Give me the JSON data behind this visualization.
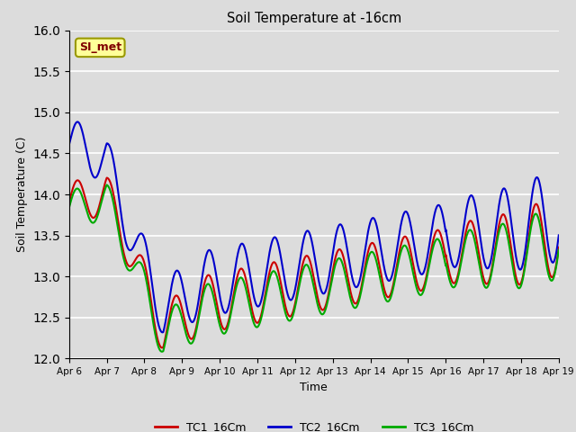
{
  "title": "Soil Temperature at -16cm",
  "xlabel": "Time",
  "ylabel": "Soil Temperature (C)",
  "ylim": [
    12.0,
    16.0
  ],
  "yticks": [
    12.0,
    12.5,
    13.0,
    13.5,
    14.0,
    14.5,
    15.0,
    15.5,
    16.0
  ],
  "background_color": "#dcdcdc",
  "plot_bg_color": "#dcdcdc",
  "grid_color": "#ffffff",
  "legend_label": "SI_met",
  "series": {
    "TC1_16Cm": {
      "color": "#cc0000",
      "linewidth": 1.5
    },
    "TC2_16Cm": {
      "color": "#0000cc",
      "linewidth": 1.5
    },
    "TC3_16Cm": {
      "color": "#00aa00",
      "linewidth": 1.5
    }
  },
  "x_start_day": 6.0,
  "x_end_day": 19.0,
  "xtick_labels": [
    "Apr 6",
    "Apr 7",
    "Apr 8",
    "Apr 9",
    "Apr 10",
    "Apr 11",
    "Apr 12",
    "Apr 13",
    "Apr 14",
    "Apr 15",
    "Apr 16",
    "Apr 17",
    "Apr 18",
    "Apr 19"
  ],
  "xtick_positions": [
    6,
    7,
    8,
    9,
    10,
    11,
    12,
    13,
    14,
    15,
    16,
    17,
    18,
    19
  ]
}
